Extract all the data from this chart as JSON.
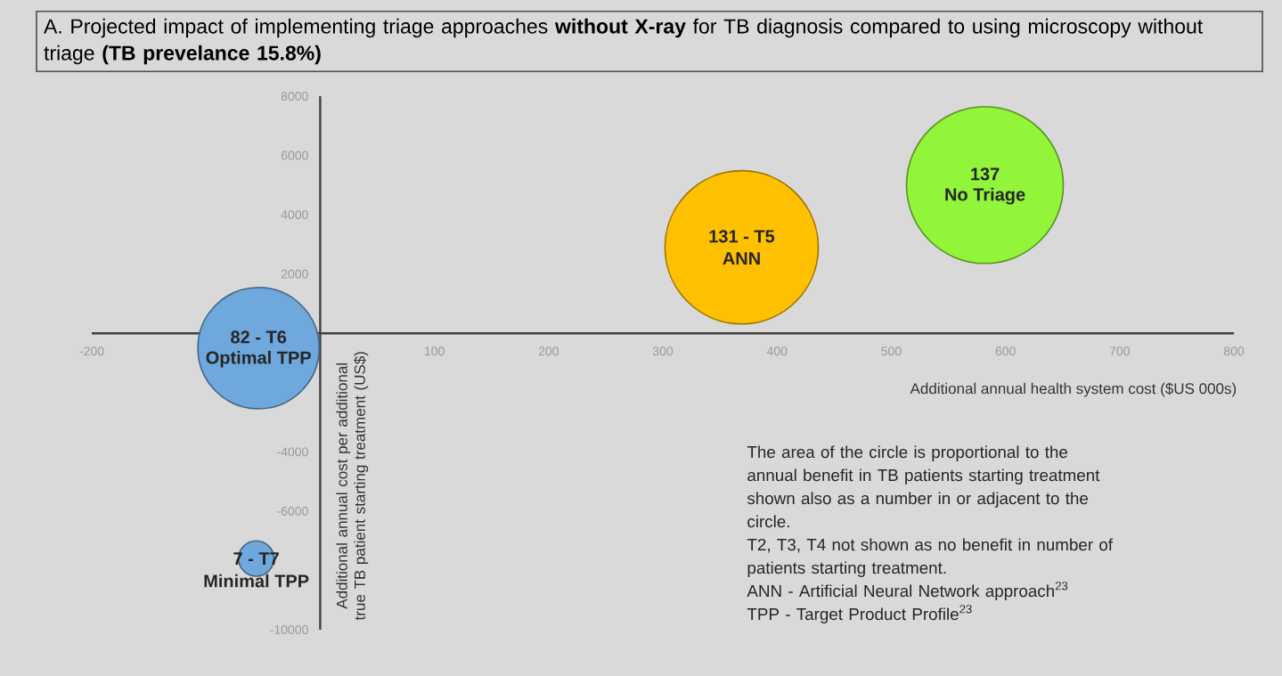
{
  "chart_data": {
    "type": "bubble",
    "title": "A. Projected impact of implementing triage approaches **without X-ray** for TB diagnosis compared to using microscopy without triage **(TB prevelance 15.8%)**",
    "xlabel": "Additional annual health system cost ($US 000s)",
    "ylabel": "Additional annual cost per additional true TB patient starting treatment (US$)",
    "x": [
      -54,
      -56,
      369,
      582
    ],
    "values": [
      -500,
      -7600,
      2900,
      5000
    ],
    "sizes": [
      0.599,
      0.051,
      0.956,
      1
    ],
    "colors": [
      "#6fa8dc",
      "#6fa8dc",
      "#ffc000",
      "#92f53a"
    ],
    "xlim": [
      -200,
      800
    ],
    "xticks": [
      -200,
      100,
      200,
      300,
      400,
      500,
      600,
      700,
      800
    ],
    "ylim": [
      -10000,
      8000
    ],
    "yticks": [
      -10000,
      -6000,
      -4000,
      2000,
      4000,
      6000,
      8000
    ],
    "grid": false,
    "annotations": [
      {
        "text": "82 - T6",
        "x": -54,
        "y": -500
      },
      {
        "text": "Optimal TPP",
        "x": -54,
        "y": -500
      },
      {
        "text": "7 - T7",
        "x": -56,
        "y": -7600
      },
      {
        "text": "Minimal TPP",
        "x": -56,
        "y": -7600
      },
      {
        "text": "131 - T5",
        "x": 369,
        "y": 2900
      },
      {
        "text": "ANN",
        "x": 369,
        "y": 2900
      },
      {
        "text": "137",
        "x": 582,
        "y": 5000
      },
      {
        "text": "No Triage",
        "x": 582,
        "y": 5000
      },
      "The area of the circle is proportional to the annual benefit in TB patients starting treatment shown also as a number in or adjacent to the circle.",
      "T2, T3, T4 not shown as no benefit in number of patients starting treatment.",
      "ANN - Artificial Neural Network approach$^{23}$",
      "TPP - Target Product Profile$^{23}$"
    ]
  }
}
